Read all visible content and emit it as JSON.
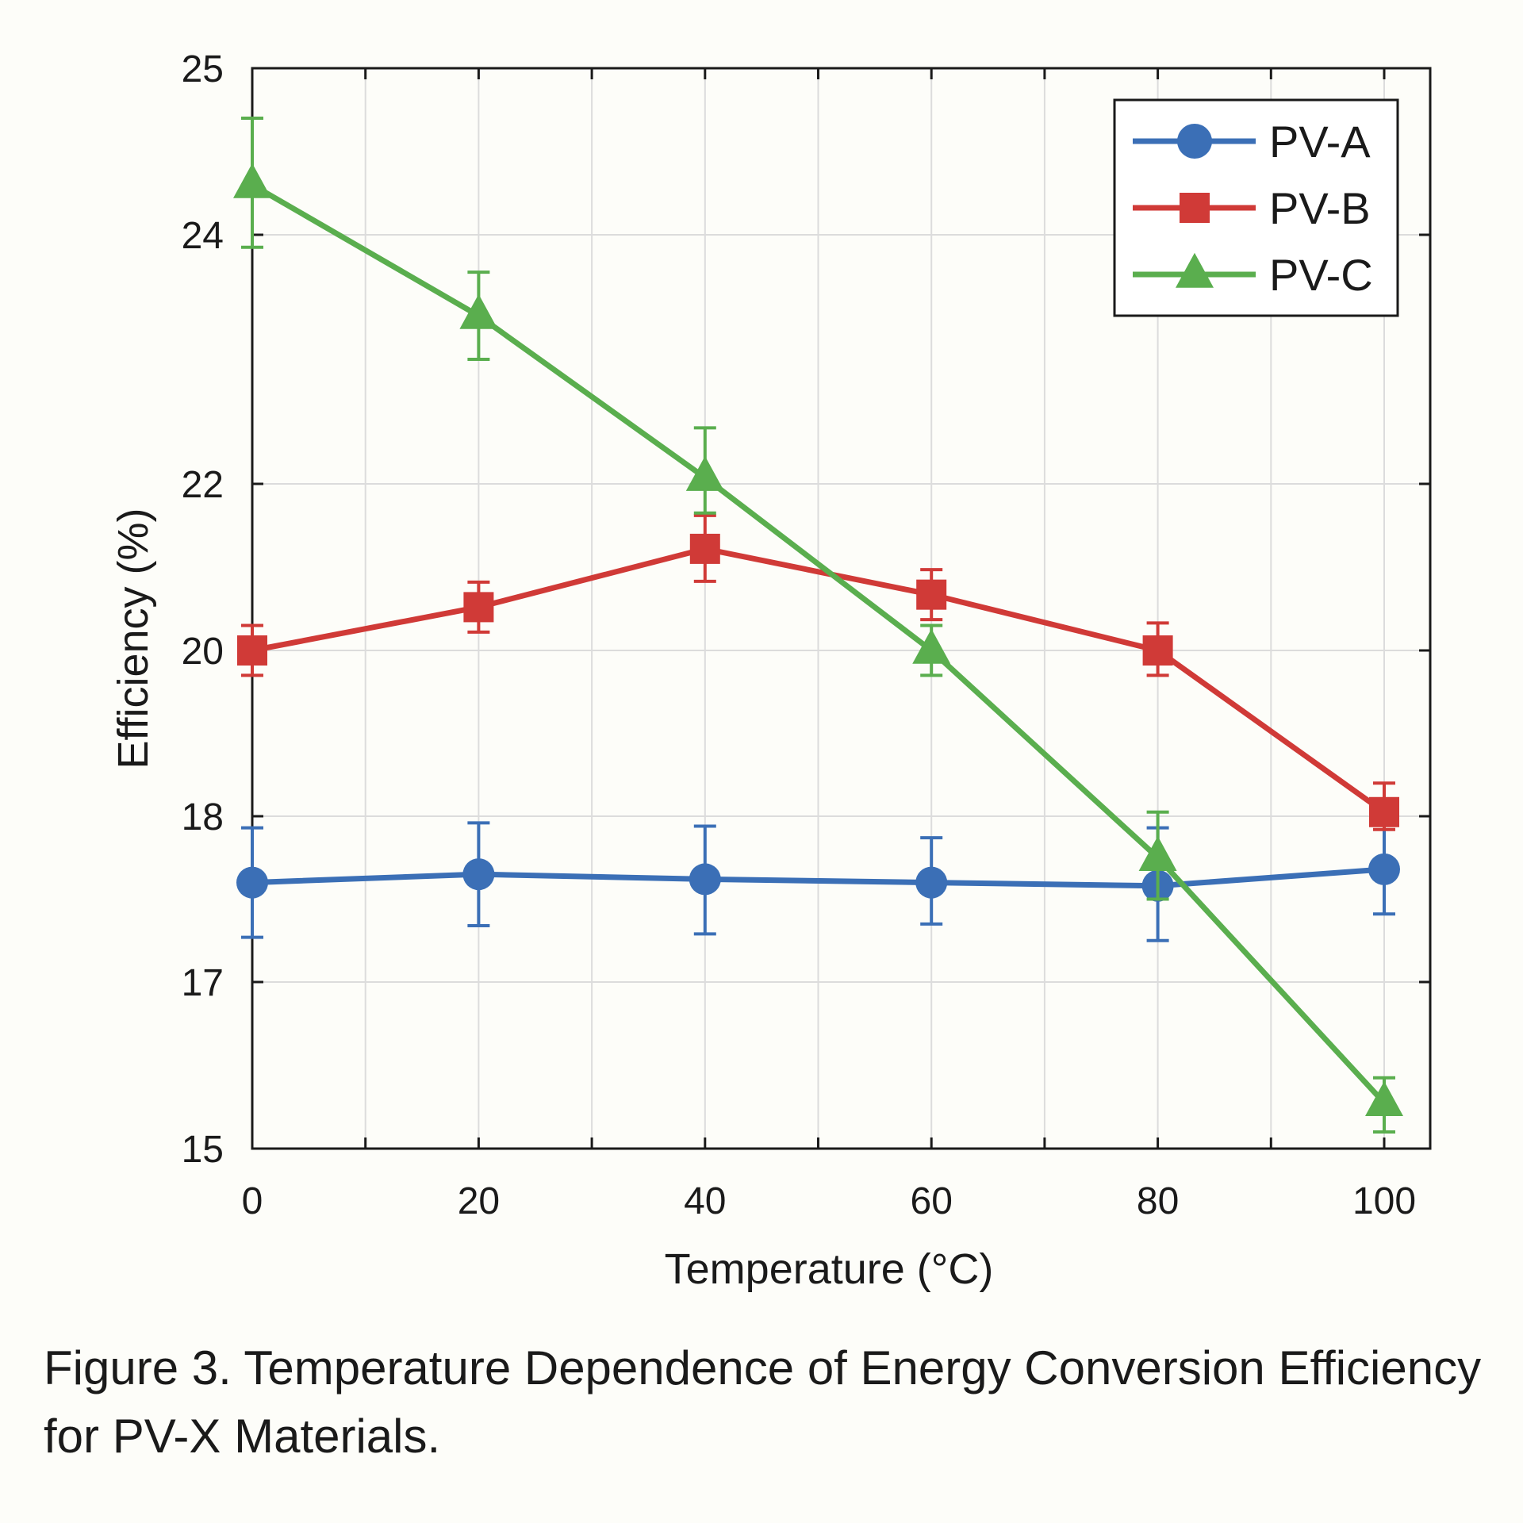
{
  "caption": "Figure 3. Temperature Dependence of Energy Conversion Efficiency for PV-X Materials.",
  "chart_data": {
    "type": "line",
    "title": "",
    "xlabel": "Temperature (°C)",
    "ylabel": "Efficiency (%)",
    "xlim": [
      0,
      105
    ],
    "ylim": [
      15,
      25
    ],
    "x_ticks": [
      0,
      20,
      40,
      60,
      80,
      100
    ],
    "x_tick_labels": [
      "0",
      "20",
      "40",
      "60",
      "80",
      "100"
    ],
    "x_minor_ticks": [
      10,
      30,
      50,
      70,
      90
    ],
    "y_ticks": [
      15,
      17,
      18,
      20,
      22,
      24,
      25
    ],
    "y_tick_labels": [
      "15",
      "17",
      "18",
      "20",
      "22",
      "24",
      "25"
    ],
    "grid": true,
    "legend_position": "top-right",
    "x": [
      0,
      20,
      40,
      60,
      80,
      100
    ],
    "series": [
      {
        "name": "PV-A",
        "color": "#3b6fb6",
        "marker": "circle",
        "values": [
          17.6,
          17.65,
          17.62,
          17.6,
          17.58,
          17.68
        ],
        "error_low": [
          17.27,
          17.34,
          17.29,
          17.35,
          17.25,
          17.41
        ],
        "error_high": [
          17.93,
          17.96,
          17.94,
          17.87,
          17.93,
          17.95
        ]
      },
      {
        "name": "PV-B",
        "color": "#d03a37",
        "marker": "square",
        "values": [
          20.0,
          20.52,
          21.22,
          20.67,
          20.0,
          18.05
        ],
        "error_low": [
          19.7,
          20.22,
          20.83,
          20.37,
          19.7,
          17.92
        ],
        "error_high": [
          20.3,
          20.82,
          21.62,
          20.97,
          20.33,
          18.4
        ]
      },
      {
        "name": "PV-C",
        "color": "#5aae4e",
        "marker": "triangle",
        "values": [
          24.3,
          23.35,
          22.05,
          20.0,
          17.75,
          15.55
        ],
        "error_low": [
          23.9,
          23.0,
          21.65,
          19.7,
          17.5,
          15.2
        ],
        "error_high": [
          24.7,
          23.7,
          22.45,
          20.3,
          18.05,
          15.85
        ]
      }
    ]
  }
}
